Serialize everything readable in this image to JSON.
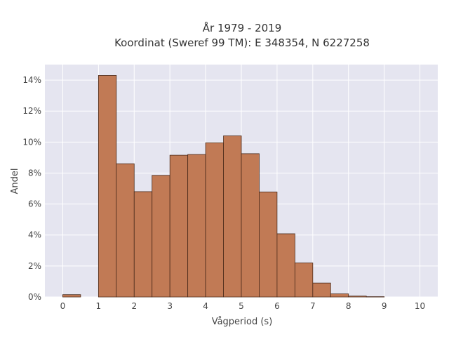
{
  "chart_data": {
    "type": "bar",
    "title": "År 1979 - 2019",
    "subtitle": "Koordinat (Sweref 99 TM): E 348354, N 6227258",
    "xlabel": "Vågperiod (s)",
    "ylabel": "Andel",
    "bin_edges": [
      0,
      0.5,
      1,
      1.5,
      2,
      2.5,
      3,
      3.5,
      4,
      4.5,
      5,
      5.5,
      6,
      6.5,
      7,
      7.5,
      8,
      8.5,
      9,
      9.5,
      10
    ],
    "values": [
      0.15,
      0,
      14.3,
      8.6,
      6.8,
      7.85,
      9.15,
      9.2,
      9.95,
      10.4,
      9.25,
      6.78,
      4.08,
      2.2,
      0.9,
      0.2,
      0.06,
      0.02,
      0,
      0
    ],
    "xlim": [
      -0.5,
      10.5
    ],
    "ylim": [
      0,
      15
    ],
    "x_ticks": [
      0,
      1,
      2,
      3,
      4,
      5,
      6,
      7,
      8,
      9,
      10
    ],
    "y_ticks": [
      0,
      2,
      4,
      6,
      8,
      10,
      12,
      14
    ],
    "y_tick_suffix": "%",
    "grid": true,
    "bar_color": "#c17a55",
    "bar_edge_color": "#4a2a1a",
    "plot_bg": "#e5e5f0"
  }
}
